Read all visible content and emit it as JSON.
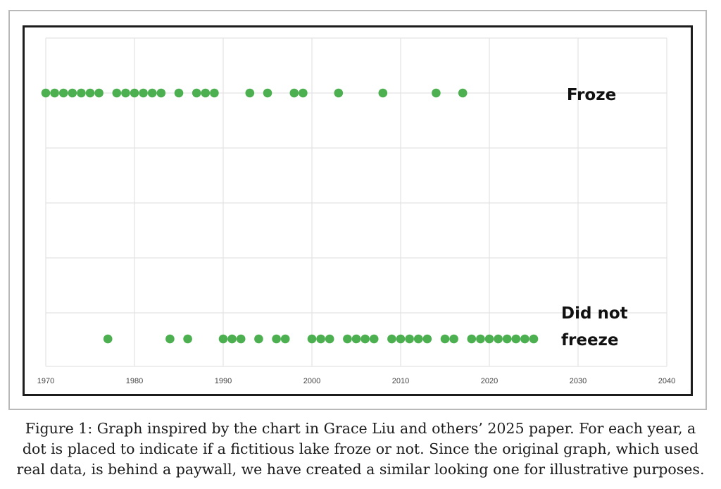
{
  "chart_data": {
    "type": "scatter",
    "title": "",
    "xlabel": "",
    "ylabel": "",
    "xlim": [
      1970,
      2040
    ],
    "x_ticks": [
      "1970",
      "1980",
      "1990",
      "2000",
      "2010",
      "2020",
      "2030",
      "2040"
    ],
    "grid": true,
    "point_color": "#4caf50",
    "categories": [
      {
        "label": "Froze",
        "label_lines": [
          "Froze"
        ]
      },
      {
        "label": "Did not freeze",
        "label_lines": [
          "Did not",
          "freeze"
        ]
      }
    ],
    "series": [
      {
        "category": "Froze",
        "x": [
          1970,
          1971,
          1972,
          1973,
          1974,
          1975,
          1976,
          1978,
          1979,
          1980,
          1981,
          1982,
          1983,
          1985,
          1987,
          1988,
          1989,
          1993,
          1995,
          1998,
          1999,
          2003,
          2008,
          2014,
          2017
        ]
      },
      {
        "category": "Did not freeze",
        "x": [
          1977,
          1984,
          1986,
          1990,
          1991,
          1992,
          1994,
          1996,
          1997,
          2000,
          2001,
          2002,
          2004,
          2005,
          2006,
          2007,
          2009,
          2010,
          2011,
          2012,
          2013,
          2015,
          2016,
          2018,
          2019,
          2020,
          2021,
          2022,
          2023,
          2024,
          2025
        ]
      }
    ]
  },
  "caption": {
    "lines": [
      "Figure 1: Graph inspired by the chart in Grace Liu and others’ 2025 paper. For each year, a",
      "dot is placed to indicate if a fictitious lake froze or not. Since the original graph, which used",
      "real data, is behind a paywall, we have created a similar looking one for illustrative purposes."
    ]
  }
}
